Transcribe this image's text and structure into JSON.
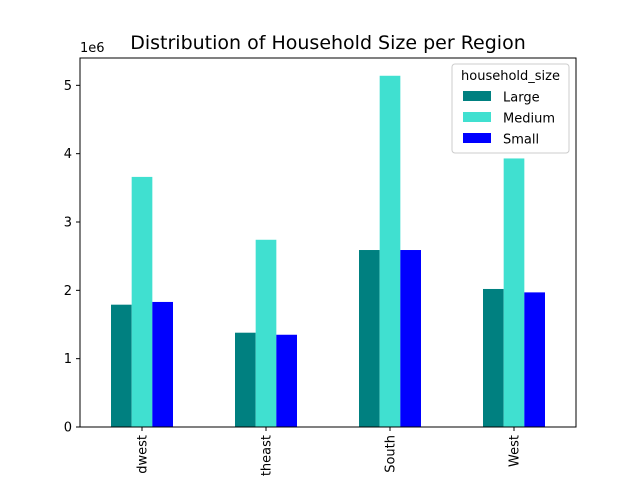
{
  "chart_data": {
    "type": "bar",
    "title": "Distribution of Household Size per Region",
    "xlabel": "",
    "ylabel": "",
    "y_offset_label": "1e6",
    "categories": [
      "Midwest",
      "Northeast",
      "South",
      "West"
    ],
    "visible_tick_labels": [
      "dwest",
      "theast",
      "South",
      "West"
    ],
    "x_tick_rotation_deg": 90,
    "ylim": [
      0,
      5.4
    ],
    "yticks": [
      0,
      1,
      2,
      3,
      4,
      5
    ],
    "ytick_labels": [
      "0",
      "1",
      "2",
      "3",
      "4",
      "5"
    ],
    "grid": false,
    "legend": {
      "title": "household_size",
      "placement": "upper right"
    },
    "series": [
      {
        "name": "Large",
        "color": "#008080",
        "values": [
          1.79,
          1.38,
          2.59,
          2.02
        ]
      },
      {
        "name": "Medium",
        "color": "#40E0D0",
        "values": [
          3.66,
          2.74,
          5.14,
          3.93
        ]
      },
      {
        "name": "Small",
        "color": "#0000FF",
        "values": [
          1.83,
          1.35,
          2.59,
          1.97
        ]
      }
    ]
  }
}
